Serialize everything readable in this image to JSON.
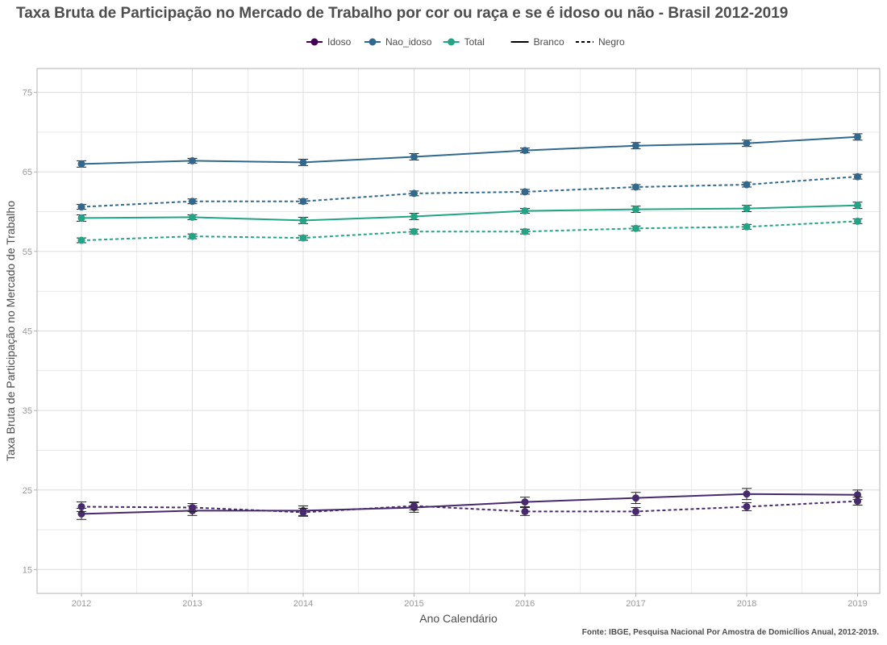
{
  "chart_data": {
    "type": "line",
    "title": "Taxa Bruta de Participação no Mercado de Trabalho por cor ou raça e se é idoso ou não - Brasil 2012-2019",
    "caption": "Fonte: IBGE, Pesquisa Nacional Por Amostra de Domicílios Anual, 2012-2019.",
    "xlabel": "Ano Calendário",
    "ylabel": "Taxa Bruta de Participação no Mercado de Trabalho",
    "x": [
      2012,
      2013,
      2014,
      2015,
      2016,
      2017,
      2018,
      2019
    ],
    "xticks": [
      "2012",
      "2013",
      "2014",
      "2015",
      "2016",
      "2017",
      "2018",
      "2019"
    ],
    "yticks": [
      "15",
      "25",
      "35",
      "45",
      "55",
      "65",
      "75"
    ],
    "xlim": [
      2011.6,
      2019.2
    ],
    "ylim": [
      12,
      78
    ],
    "grid": true,
    "legend_position": "top",
    "color_legend": [
      {
        "label": "Idoso",
        "color": "#440154"
      },
      {
        "label": "Nao_idoso",
        "color": "#31688e"
      },
      {
        "label": "Total",
        "color": "#21a585"
      }
    ],
    "linetype_legend": [
      {
        "label": "Branco",
        "dash": "solid"
      },
      {
        "label": "Negro",
        "dash": "dotted"
      }
    ],
    "series": [
      {
        "group": "Idoso",
        "race": "Branco",
        "color": "#472a6e",
        "dash": "solid",
        "values": [
          22.0,
          22.4,
          22.4,
          22.8,
          23.5,
          24.0,
          24.5,
          24.4
        ],
        "err": [
          0.7,
          0.6,
          0.6,
          0.6,
          0.6,
          0.7,
          0.7,
          0.6
        ]
      },
      {
        "group": "Idoso",
        "race": "Negro",
        "color": "#472a6e",
        "dash": "dotted",
        "values": [
          22.9,
          22.8,
          22.2,
          23.0,
          22.3,
          22.3,
          22.9,
          23.6
        ],
        "err": [
          0.6,
          0.5,
          0.5,
          0.5,
          0.5,
          0.5,
          0.5,
          0.5
        ]
      },
      {
        "group": "Nao_idoso",
        "race": "Branco",
        "color": "#31688e",
        "dash": "solid",
        "values": [
          66.0,
          66.4,
          66.2,
          66.9,
          67.7,
          68.3,
          68.6,
          69.4
        ],
        "err": [
          0.4,
          0.3,
          0.4,
          0.4,
          0.3,
          0.4,
          0.4,
          0.4
        ]
      },
      {
        "group": "Nao_idoso",
        "race": "Negro",
        "color": "#31688e",
        "dash": "dotted",
        "values": [
          60.6,
          61.3,
          61.3,
          62.3,
          62.5,
          63.1,
          63.4,
          64.4
        ],
        "err": [
          0.3,
          0.3,
          0.3,
          0.3,
          0.3,
          0.3,
          0.3,
          0.3
        ]
      },
      {
        "group": "Total",
        "race": "Branco",
        "color": "#21a585",
        "dash": "solid",
        "values": [
          59.2,
          59.3,
          58.9,
          59.4,
          60.1,
          60.3,
          60.4,
          60.8
        ],
        "err": [
          0.4,
          0.3,
          0.4,
          0.4,
          0.3,
          0.4,
          0.4,
          0.4
        ]
      },
      {
        "group": "Total",
        "race": "Negro",
        "color": "#21a585",
        "dash": "dotted",
        "values": [
          56.4,
          56.9,
          56.7,
          57.5,
          57.5,
          57.9,
          58.1,
          58.8
        ],
        "err": [
          0.3,
          0.3,
          0.3,
          0.3,
          0.3,
          0.3,
          0.3,
          0.3
        ]
      }
    ]
  }
}
